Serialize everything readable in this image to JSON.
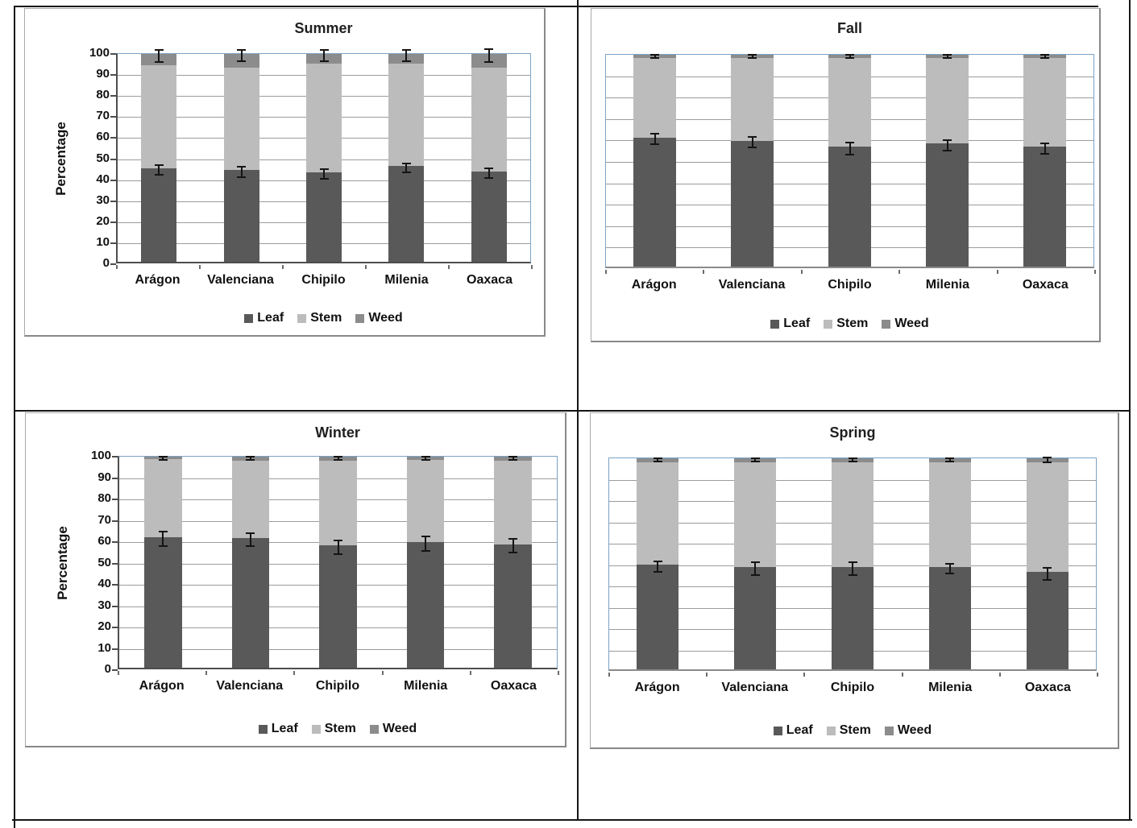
{
  "page": {
    "background": "#ffffff",
    "table_border_color": "#161616"
  },
  "series_colors": {
    "Leaf": "#595959",
    "Stem": "#bcbcbc",
    "Weed": "#8c8c8c"
  },
  "plot_style": {
    "plot_border_color": "#7ba3c6",
    "gridline_color": "#9c9c9c",
    "axis_color": "#4d4d4d",
    "error_bar_color": "#141414",
    "grid": "on",
    "legend_position": "bottom"
  },
  "chart_data": [
    {
      "type": "bar",
      "stacked": true,
      "title": "Summer",
      "xlabel": "",
      "ylabel": "Percentage",
      "show_y_axis": true,
      "ylim": [
        0,
        100
      ],
      "ystep": 10,
      "ytick_labels": [
        "0",
        "10",
        "20",
        "30",
        "40",
        "50",
        "60",
        "70",
        "80",
        "90",
        "100"
      ],
      "categories": [
        "Arágon",
        "Valenciana",
        "Chipilo",
        "Milenia",
        "Oaxaca"
      ],
      "series": [
        {
          "name": "Leaf",
          "values": [
            45,
            44,
            43,
            46,
            43.5
          ]
        },
        {
          "name": "Stem",
          "values": [
            49.5,
            49.5,
            52.5,
            49.5,
            50
          ]
        },
        {
          "name": "Weed",
          "values": [
            5.5,
            6.5,
            4.5,
            4.5,
            6.5
          ]
        }
      ],
      "error_bars": {
        "leaf": [
          2,
          2,
          1.8,
          1.8,
          1.8
        ],
        "total": [
          2.5,
          2.2,
          2.3,
          2.2,
          2.8
        ]
      },
      "legend": [
        "Leaf",
        "Stem",
        "Weed"
      ]
    },
    {
      "type": "bar",
      "stacked": true,
      "title": "Fall",
      "xlabel": "",
      "ylabel": "",
      "show_y_axis": false,
      "ylim": [
        0,
        100
      ],
      "ystep": 10,
      "categories": [
        "Arágon",
        "Valenciana",
        "Chipilo",
        "Milenia",
        "Oaxaca"
      ],
      "series": [
        {
          "name": "Leaf",
          "values": [
            61,
            59.5,
            56.5,
            58,
            56.5
          ]
        },
        {
          "name": "Stem",
          "values": [
            37.5,
            39,
            42,
            40.5,
            42
          ]
        },
        {
          "name": "Weed",
          "values": [
            1.5,
            1.5,
            1.5,
            1.5,
            1.5
          ]
        }
      ],
      "error_bars": {
        "leaf": [
          2,
          2.2,
          2.5,
          2,
          2.2
        ],
        "total": [
          0.5,
          0.4,
          0.4,
          0.4,
          0.4
        ]
      },
      "legend": [
        "Leaf",
        "Stem",
        "Weed"
      ]
    },
    {
      "type": "bar",
      "stacked": true,
      "title": "Winter",
      "xlabel": "",
      "ylabel": "Percentage",
      "show_y_axis": true,
      "ylim": [
        0,
        100
      ],
      "ystep": 10,
      "ytick_labels": [
        "0",
        "10",
        "20",
        "30",
        "40",
        "50",
        "60",
        "70",
        "80",
        "90",
        "100"
      ],
      "categories": [
        "Arágon",
        "Valenciana",
        "Chipilo",
        "Milenia",
        "Oaxaca"
      ],
      "series": [
        {
          "name": "Leaf",
          "values": [
            62,
            61.5,
            58,
            59.5,
            58.5
          ]
        },
        {
          "name": "Stem",
          "values": [
            37,
            36.5,
            40,
            39,
            39.5
          ]
        },
        {
          "name": "Weed",
          "values": [
            1,
            2,
            2,
            1.5,
            2
          ]
        }
      ],
      "error_bars": {
        "leaf": [
          3,
          2.8,
          2.8,
          3,
          2.8
        ],
        "total": [
          0.4,
          0.5,
          0.5,
          0.4,
          0.4
        ]
      },
      "legend": [
        "Leaf",
        "Stem",
        "Weed"
      ]
    },
    {
      "type": "bar",
      "stacked": true,
      "title": "Spring",
      "xlabel": "",
      "ylabel": "",
      "show_y_axis": false,
      "ylim": [
        0,
        100
      ],
      "ystep": 10,
      "categories": [
        "Arágon",
        "Valenciana",
        "Chipilo",
        "Milenia",
        "Oaxaca"
      ],
      "series": [
        {
          "name": "Leaf",
          "values": [
            49.5,
            48.5,
            48.5,
            48.5,
            46
          ]
        },
        {
          "name": "Stem",
          "values": [
            48.5,
            49.5,
            49.5,
            49.5,
            52
          ]
        },
        {
          "name": "Weed",
          "values": [
            2,
            2,
            2,
            2,
            2
          ]
        }
      ],
      "error_bars": {
        "leaf": [
          2,
          2.5,
          2.5,
          2,
          2.5
        ],
        "total": [
          0.5,
          0.5,
          0.5,
          0.5,
          0.6
        ]
      },
      "legend": [
        "Leaf",
        "Stem",
        "Weed"
      ]
    }
  ]
}
